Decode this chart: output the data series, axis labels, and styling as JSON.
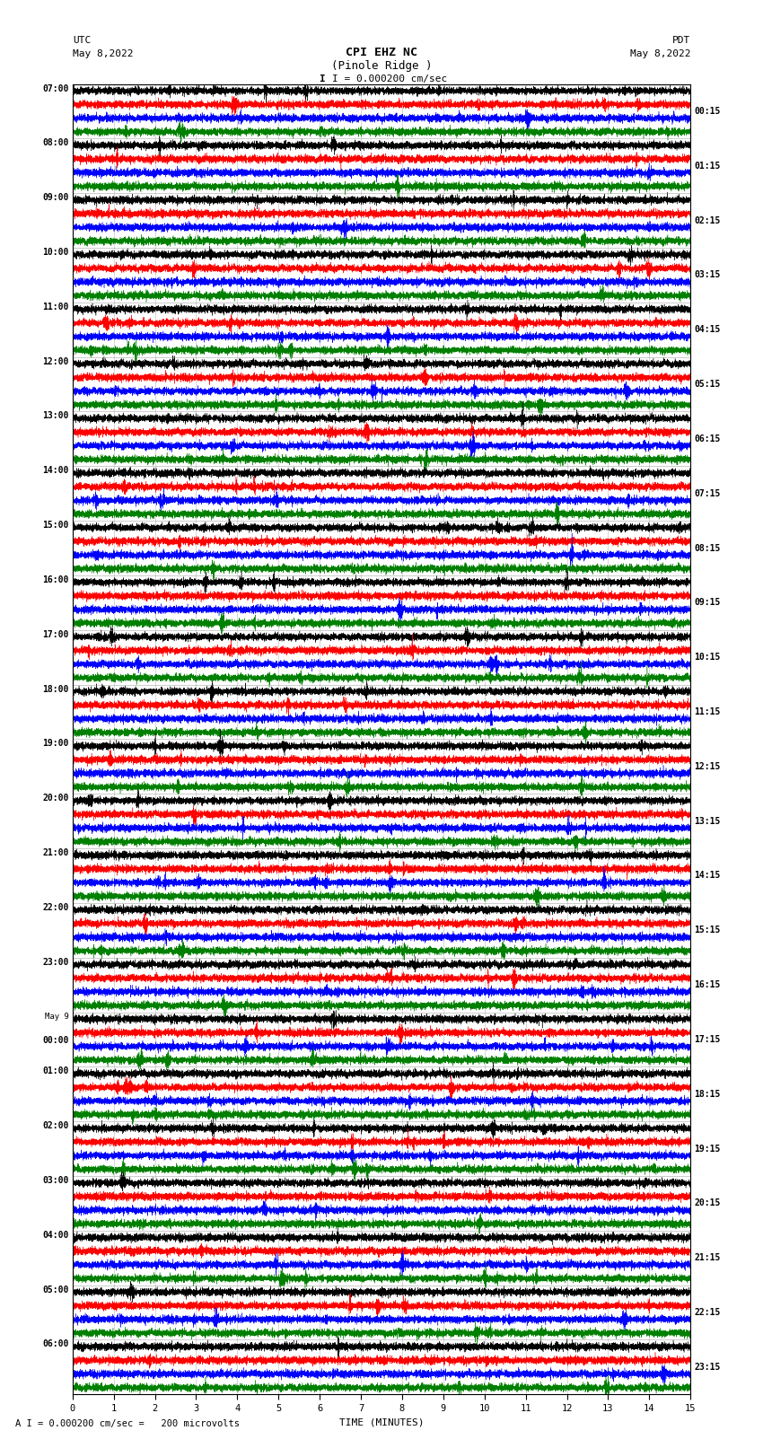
{
  "title_line1": "CPI EHZ NC",
  "title_line2": "(Pinole Ridge )",
  "scale_label": "I = 0.000200 cm/sec",
  "bottom_label": "A I = 0.000200 cm/sec =   200 microvolts",
  "utc_label": "UTC",
  "utc_date": "May 8,2022",
  "pdt_label": "PDT",
  "pdt_date": "May 8,2022",
  "xlabel": "TIME (MINUTES)",
  "left_times": [
    "07:00",
    "08:00",
    "09:00",
    "10:00",
    "11:00",
    "12:00",
    "13:00",
    "14:00",
    "15:00",
    "16:00",
    "17:00",
    "18:00",
    "19:00",
    "20:00",
    "21:00",
    "22:00",
    "23:00",
    "May 9",
    "00:00",
    "01:00",
    "02:00",
    "03:00",
    "04:00",
    "05:00",
    "06:00"
  ],
  "right_times": [
    "00:15",
    "01:15",
    "02:15",
    "03:15",
    "04:15",
    "05:15",
    "06:15",
    "07:15",
    "08:15",
    "09:15",
    "10:15",
    "11:15",
    "12:15",
    "13:15",
    "14:15",
    "15:15",
    "16:15",
    "17:15",
    "18:15",
    "19:15",
    "20:15",
    "21:15",
    "22:15",
    "23:15"
  ],
  "n_rows": 24,
  "traces_per_row": 4,
  "colors": [
    "black",
    "red",
    "blue",
    "green"
  ],
  "bg_color": "#ffffff",
  "figsize": [
    8.5,
    16.13
  ],
  "dpi": 100,
  "n_points": 9000,
  "trace_amplitude": 0.3,
  "noise_base": 0.08
}
